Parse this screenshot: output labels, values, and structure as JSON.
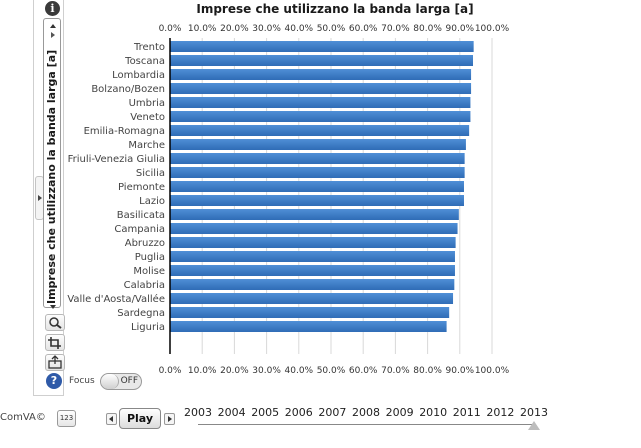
{
  "toolbar": {
    "info_icon": "info-icon",
    "info_glyph": "i",
    "variable_label": "Imprese che utilizzano la banda larga [a]",
    "help_glyph": "?",
    "focus_label": "Focus",
    "focus_state": "OFF"
  },
  "bottom": {
    "credit": "ComVA©",
    "num_button": "123",
    "play_label": "Play",
    "years": [
      "2003",
      "2004",
      "2005",
      "2006",
      "2007",
      "2008",
      "2009",
      "2010",
      "2011",
      "2012",
      "2013"
    ],
    "selected_year": "2013"
  },
  "chart_data": {
    "type": "bar",
    "orientation": "horizontal",
    "title": "Imprese che utilizzano la banda larga [a]",
    "categories": [
      "Trento",
      "Toscana",
      "Lombardia",
      "Bolzano/Bozen",
      "Umbria",
      "Veneto",
      "Emilia-Romagna",
      "Marche",
      "Friuli-Venezia Giulia",
      "Sicilia",
      "Piemonte",
      "Lazio",
      "Basilicata",
      "Campania",
      "Abruzzo",
      "Puglia",
      "Molise",
      "Calabria",
      "Valle d'Aosta/Vallée",
      "Sardegna",
      "Liguria"
    ],
    "values": [
      94.3,
      94.1,
      93.5,
      93.5,
      93.3,
      93.3,
      92.9,
      91.9,
      91.5,
      91.5,
      91.3,
      91.3,
      89.7,
      89.3,
      88.7,
      88.5,
      88.5,
      88.3,
      87.9,
      86.7,
      85.9
    ],
    "xlim": [
      0,
      100
    ],
    "ticks": [
      "0.0%",
      "10.0%",
      "20.0%",
      "30.0%",
      "40.0%",
      "50.0%",
      "60.0%",
      "70.0%",
      "80.0%",
      "90.0%",
      "100.0%"
    ],
    "grid": true,
    "bar_color_top": "#4f8fd6",
    "bar_color_bottom": "#2f6cb6"
  }
}
